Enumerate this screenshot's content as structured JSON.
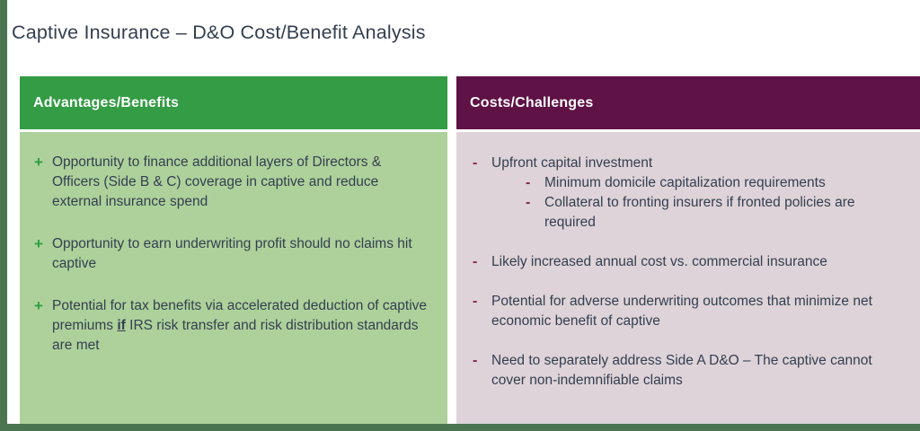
{
  "slide": {
    "title": "Captive Insurance – D&O Cost/Benefit Analysis"
  },
  "colors": {
    "accent_bar": "#4A7550",
    "advantages_header_bg": "#339C44",
    "advantages_body_bg": "#AED19B",
    "costs_header_bg": "#5F1245",
    "costs_body_bg": "#DED3D8",
    "text": "#333F50",
    "plus_marker": "#2F9E41",
    "minus_marker": "#822453",
    "slide_bg": "#FFFFFF"
  },
  "advantages": {
    "header": "Advantages/Benefits",
    "marker": "+",
    "bullets": [
      {
        "text": "Opportunity to finance additional layers of Directors & Officers (Side B & C) coverage in captive and reduce external insurance spend"
      },
      {
        "text": "Opportunity to earn underwriting profit should no claims hit captive"
      },
      {
        "pre": "Potential for tax benefits via accelerated deduction of captive premiums ",
        "emphasis": "if",
        "post": " IRS risk transfer and risk distribution standards are met"
      }
    ]
  },
  "costs": {
    "header": "Costs/Challenges",
    "marker": "-",
    "bullets": [
      {
        "text": "Upfront capital investment",
        "sub": [
          "Minimum domicile capitalization requirements",
          "Collateral to fronting insurers if fronted policies are required"
        ]
      },
      {
        "text": "Likely increased annual cost vs. commercial insurance"
      },
      {
        "text": "Potential for adverse underwriting outcomes that minimize net economic benefit of captive"
      },
      {
        "text": "Need to separately address Side A D&O – The captive cannot cover non-indemnifiable claims"
      }
    ]
  }
}
